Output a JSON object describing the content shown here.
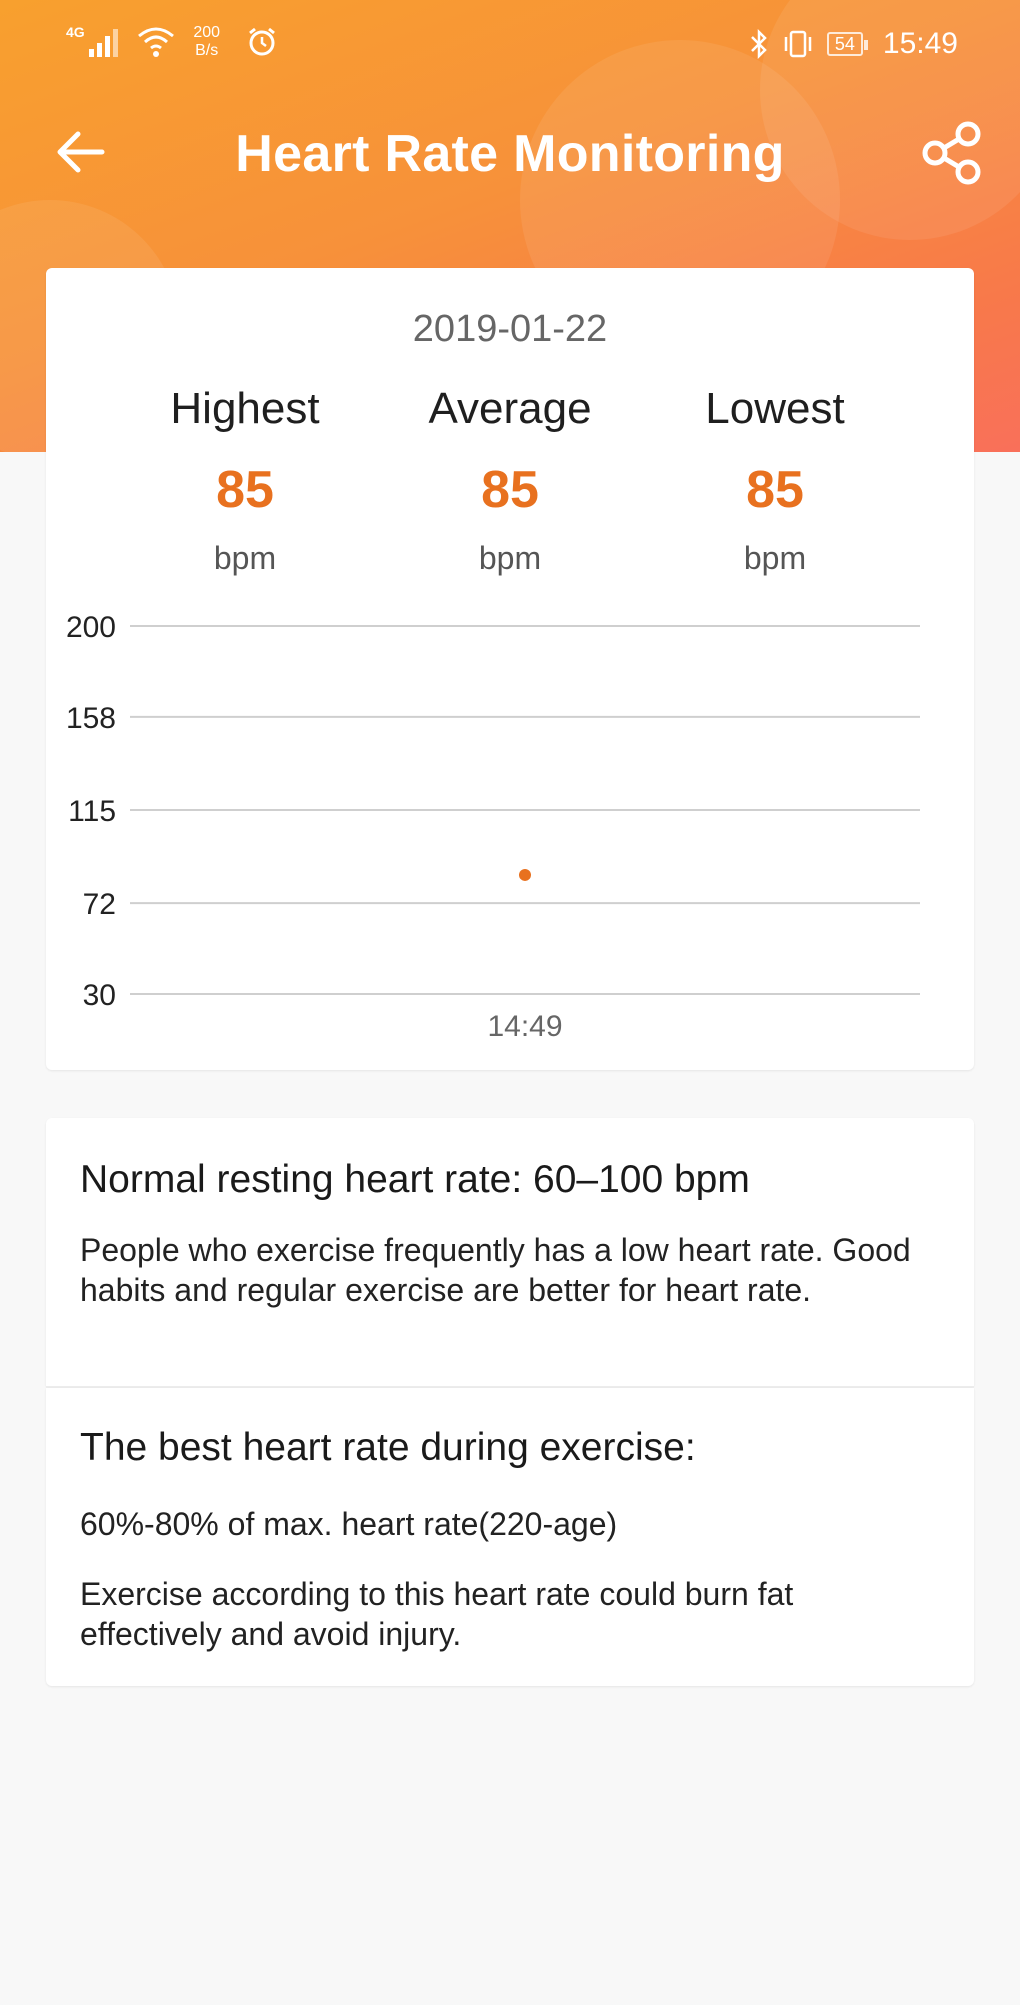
{
  "status_bar": {
    "network": "4G",
    "data_rate": "200\nB/s",
    "battery": "54",
    "time": "15:49"
  },
  "header": {
    "title": "Heart Rate Monitoring",
    "back_icon": "arrow-left-icon",
    "share_icon": "share-icon"
  },
  "summary": {
    "date": "2019-01-22",
    "stats": [
      {
        "label": "Highest",
        "value": "85",
        "unit": "bpm"
      },
      {
        "label": "Average",
        "value": "85",
        "unit": "bpm"
      },
      {
        "label": "Lowest",
        "value": "85",
        "unit": "bpm"
      }
    ]
  },
  "chart_data": {
    "type": "scatter",
    "y_ticks": [
      200,
      158,
      115,
      72,
      30
    ],
    "ylim": [
      30,
      200
    ],
    "x_tick_labels": [
      "14:49"
    ],
    "points": [
      {
        "x": "14:49",
        "y": 85
      }
    ],
    "grid": true,
    "color": "#e8711f"
  },
  "info": {
    "resting_title": "Normal resting heart rate: 60–100 bpm",
    "resting_text": "People who exercise frequently has a low heart rate. Good habits and regular exercise are better for heart rate.",
    "exercise_title": "The best heart rate during exercise:",
    "exercise_range": "60%-80% of max. heart rate(220-age)",
    "exercise_text": "Exercise according to this heart rate could burn fat effectively and avoid injury."
  },
  "colors": {
    "accent": "#e8711f",
    "header_gradient_start": "#f8a02e",
    "header_gradient_end": "#f9705a"
  }
}
